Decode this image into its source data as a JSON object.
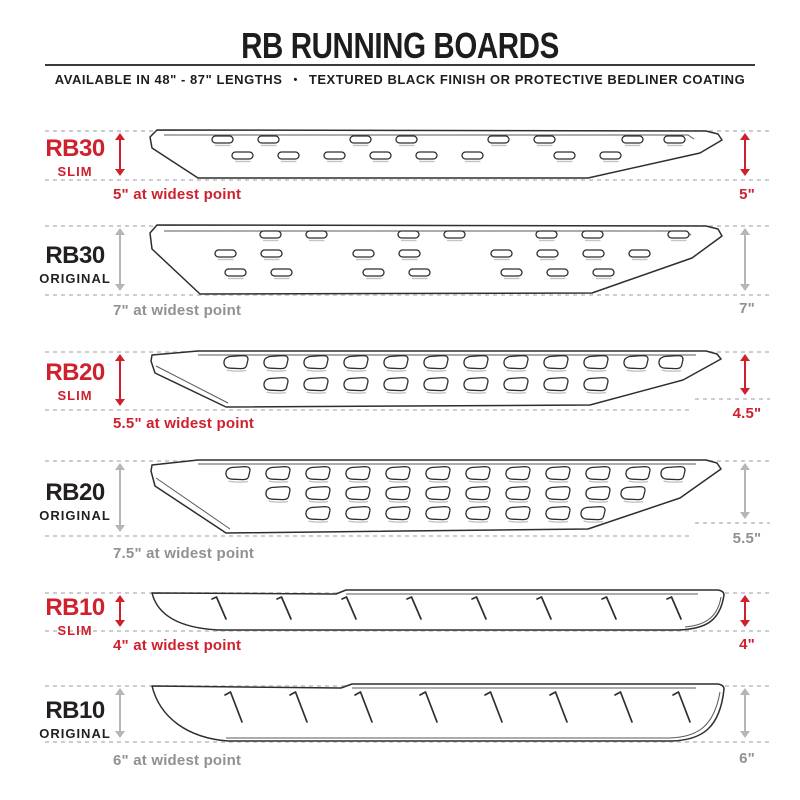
{
  "header": {
    "title": "RB RUNNING BOARDS",
    "subtitle_left": "AVAILABLE IN 48\" - 87\" LENGTHS",
    "subtitle_separator": "•",
    "subtitle_right": "TEXTURED BLACK FINISH OR PROTECTIVE BEDLINER COATING"
  },
  "rows": [
    {
      "model": "RB30",
      "variant": "SLIM",
      "accent": "red",
      "width_note": "5\" at widest point",
      "height_note": "5\""
    },
    {
      "model": "RB30",
      "variant": "ORIGINAL",
      "accent": "dark",
      "width_note": "7\" at widest point",
      "height_note": "7\""
    },
    {
      "model": "RB20",
      "variant": "SLIM",
      "accent": "red",
      "width_note": "5.5\" at widest point",
      "height_note": "4.5\""
    },
    {
      "model": "RB20",
      "variant": "ORIGINAL",
      "accent": "dark",
      "width_note": "7.5\" at widest point",
      "height_note": "5.5\""
    },
    {
      "model": "RB10",
      "variant": "SLIM",
      "accent": "red",
      "width_note": "4\" at widest point",
      "height_note": "4\""
    },
    {
      "model": "RB10",
      "variant": "ORIGINAL",
      "accent": "dark",
      "width_note": "6\" at widest point",
      "height_note": "6\""
    }
  ],
  "colors": {
    "red": "#cf202e",
    "dark": "#231f20",
    "gray_text": "#8f9193",
    "gray_arrow": "#b4b6b8"
  }
}
